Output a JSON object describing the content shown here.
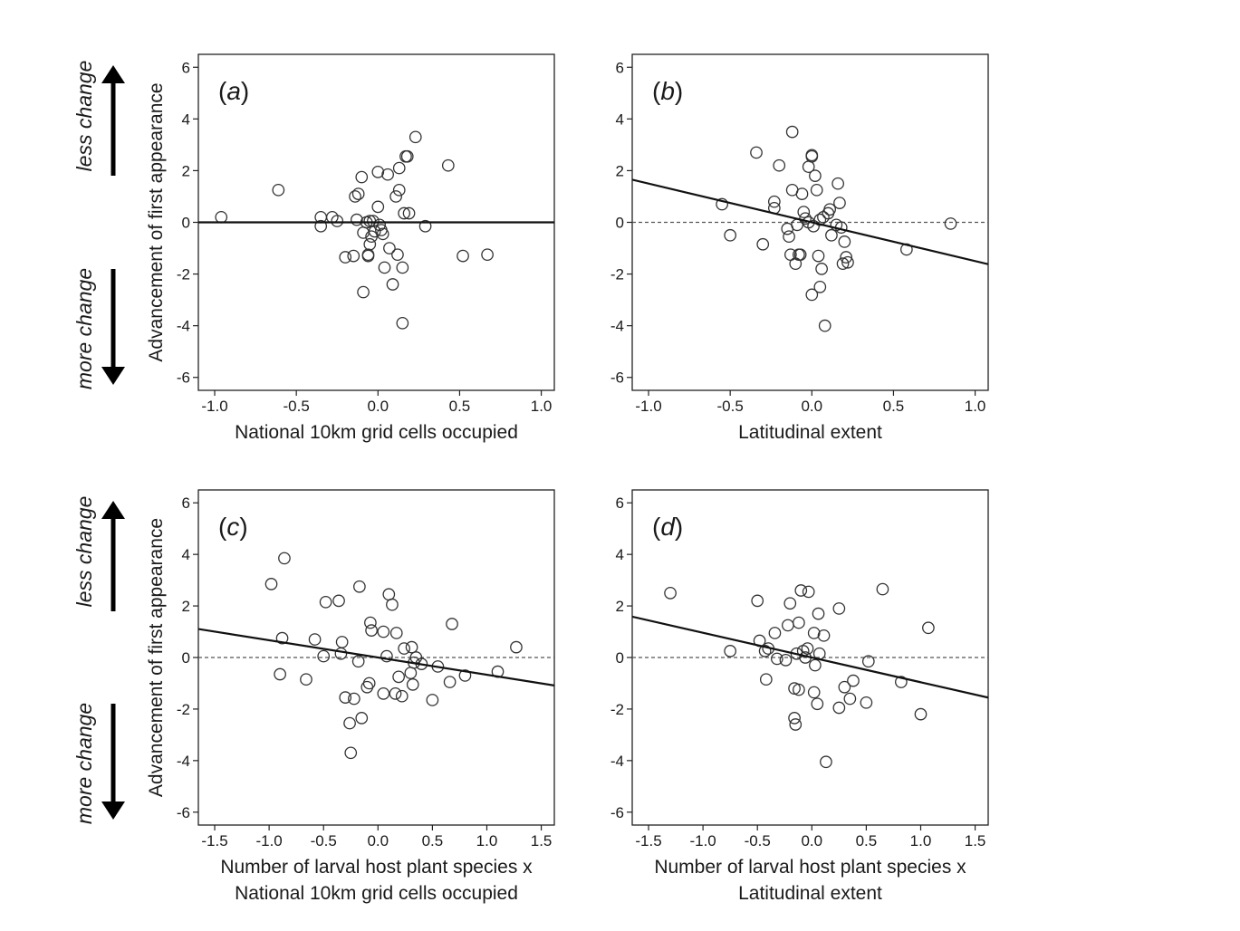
{
  "side_labels": {
    "top": "less change",
    "bottom": "more change"
  },
  "chart_data": [
    {
      "type": "scatter",
      "tag_open": "(",
      "tag_letter": "a",
      "tag_close": ")",
      "xlabel": [
        "National 10km grid cells occupied"
      ],
      "ylabel": "Advancement of first appearance",
      "xlim": [
        -1.1,
        1.08
      ],
      "ylim": [
        -6.5,
        6.5
      ],
      "xticks": [
        "-1.0",
        "-0.5",
        "0.0",
        "0.5",
        "1.0"
      ],
      "yticks": [
        "6",
        "4",
        "2",
        "0",
        "-2",
        "-4",
        "-6"
      ],
      "fit_line": {
        "slope": 0.0,
        "intercept": 0.0,
        "style": "solid"
      },
      "reference_line": null,
      "points": [
        [
          -0.96,
          0.2
        ],
        [
          -0.61,
          1.25
        ],
        [
          -0.35,
          0.2
        ],
        [
          -0.35,
          -0.15
        ],
        [
          -0.28,
          0.2
        ],
        [
          -0.25,
          0.05
        ],
        [
          -0.2,
          -1.35
        ],
        [
          -0.15,
          -1.3
        ],
        [
          -0.14,
          1.0
        ],
        [
          -0.13,
          0.1
        ],
        [
          -0.12,
          1.1
        ],
        [
          -0.1,
          1.75
        ],
        [
          -0.09,
          -0.4
        ],
        [
          -0.09,
          -2.7
        ],
        [
          -0.07,
          0.0
        ],
        [
          -0.06,
          -1.25
        ],
        [
          -0.06,
          -1.3
        ],
        [
          -0.05,
          0.05
        ],
        [
          -0.05,
          -0.85
        ],
        [
          -0.04,
          -0.55
        ],
        [
          -0.03,
          0.05
        ],
        [
          -0.02,
          -0.35
        ],
        [
          0.0,
          0.6
        ],
        [
          0.0,
          1.95
        ],
        [
          0.01,
          -0.1
        ],
        [
          0.02,
          -0.3
        ],
        [
          0.03,
          -0.45
        ],
        [
          0.04,
          -1.75
        ],
        [
          0.06,
          1.85
        ],
        [
          0.07,
          -1.0
        ],
        [
          0.09,
          -2.4
        ],
        [
          0.11,
          1.0
        ],
        [
          0.12,
          -1.25
        ],
        [
          0.13,
          2.1
        ],
        [
          0.13,
          1.25
        ],
        [
          0.15,
          -1.75
        ],
        [
          0.15,
          -3.9
        ],
        [
          0.16,
          0.35
        ],
        [
          0.17,
          2.55
        ],
        [
          0.18,
          2.55
        ],
        [
          0.19,
          0.35
        ],
        [
          0.23,
          3.3
        ],
        [
          0.29,
          -0.15
        ],
        [
          0.43,
          2.2
        ],
        [
          0.52,
          -1.3
        ],
        [
          0.67,
          -1.25
        ]
      ]
    },
    {
      "type": "scatter",
      "tag_open": "(",
      "tag_letter": "b",
      "tag_close": ")",
      "xlabel": [
        "Latitudinal extent"
      ],
      "ylabel": "",
      "xlim": [
        -1.1,
        1.08
      ],
      "ylim": [
        -6.5,
        6.5
      ],
      "xticks": [
        "-1.0",
        "-0.5",
        "0.0",
        "0.5",
        "1.0"
      ],
      "yticks": [
        "6",
        "4",
        "2",
        "0",
        "-2",
        "-4",
        "-6"
      ],
      "fit_line": {
        "slope": -1.5,
        "intercept": 0.0,
        "style": "solid"
      },
      "reference_line": {
        "y": 0,
        "style": "dashed"
      },
      "points": [
        [
          -0.55,
          0.7
        ],
        [
          -0.5,
          -0.5
        ],
        [
          -0.34,
          2.7
        ],
        [
          -0.3,
          -0.85
        ],
        [
          -0.23,
          0.8
        ],
        [
          -0.23,
          0.55
        ],
        [
          -0.2,
          2.2
        ],
        [
          -0.15,
          -0.25
        ],
        [
          -0.14,
          -0.55
        ],
        [
          -0.13,
          -1.25
        ],
        [
          -0.12,
          3.5
        ],
        [
          -0.12,
          1.25
        ],
        [
          -0.1,
          -1.6
        ],
        [
          -0.09,
          -0.1
        ],
        [
          -0.08,
          -1.25
        ],
        [
          -0.07,
          -1.25
        ],
        [
          -0.06,
          1.1
        ],
        [
          -0.05,
          0.4
        ],
        [
          -0.04,
          0.15
        ],
        [
          -0.02,
          0.0
        ],
        [
          -0.02,
          2.15
        ],
        [
          0.0,
          2.55
        ],
        [
          0.0,
          2.6
        ],
        [
          0.0,
          -2.8
        ],
        [
          0.01,
          -0.15
        ],
        [
          0.02,
          1.8
        ],
        [
          0.03,
          1.25
        ],
        [
          0.04,
          -1.3
        ],
        [
          0.05,
          -2.5
        ],
        [
          0.05,
          0.1
        ],
        [
          0.06,
          -1.8
        ],
        [
          0.07,
          0.2
        ],
        [
          0.08,
          -4.0
        ],
        [
          0.1,
          0.35
        ],
        [
          0.11,
          0.5
        ],
        [
          0.12,
          -0.5
        ],
        [
          0.15,
          -0.1
        ],
        [
          0.16,
          1.5
        ],
        [
          0.17,
          0.75
        ],
        [
          0.18,
          -0.2
        ],
        [
          0.19,
          -1.6
        ],
        [
          0.2,
          -0.75
        ],
        [
          0.21,
          -1.35
        ],
        [
          0.22,
          -1.55
        ],
        [
          0.58,
          -1.05
        ],
        [
          0.85,
          -0.05
        ]
      ]
    },
    {
      "type": "scatter",
      "tag_open": "(",
      "tag_letter": "c",
      "tag_close": ")",
      "xlabel": [
        "Number of larval host plant species x",
        "National 10km grid cells occupied"
      ],
      "ylabel": "Advancement of first appearance",
      "xlim": [
        -1.65,
        1.62
      ],
      "ylim": [
        -6.5,
        6.5
      ],
      "xticks": [
        "-1.5",
        "-1.0",
        "-0.5",
        "0.0",
        "0.5",
        "1.0",
        "1.5"
      ],
      "yticks": [
        "6",
        "4",
        "2",
        "0",
        "-2",
        "-4",
        "-6"
      ],
      "fit_line": {
        "slope": -0.67,
        "intercept": 0.0,
        "style": "solid"
      },
      "reference_line": {
        "y": 0,
        "style": "dashed"
      },
      "points": [
        [
          -0.98,
          2.85
        ],
        [
          -0.86,
          3.85
        ],
        [
          -0.9,
          -0.65
        ],
        [
          -0.88,
          0.75
        ],
        [
          -0.66,
          -0.85
        ],
        [
          -0.58,
          0.7
        ],
        [
          -0.5,
          0.05
        ],
        [
          -0.48,
          2.15
        ],
        [
          -0.36,
          2.2
        ],
        [
          -0.34,
          0.15
        ],
        [
          -0.33,
          0.6
        ],
        [
          -0.3,
          -1.55
        ],
        [
          -0.26,
          -2.55
        ],
        [
          -0.25,
          -3.7
        ],
        [
          -0.22,
          -1.6
        ],
        [
          -0.18,
          -0.15
        ],
        [
          -0.17,
          2.75
        ],
        [
          -0.15,
          -2.35
        ],
        [
          -0.1,
          -1.15
        ],
        [
          -0.08,
          -1.0
        ],
        [
          -0.07,
          1.35
        ],
        [
          -0.06,
          1.05
        ],
        [
          0.05,
          1.0
        ],
        [
          0.05,
          -1.4
        ],
        [
          0.08,
          0.05
        ],
        [
          0.1,
          2.45
        ],
        [
          0.13,
          2.05
        ],
        [
          0.16,
          -1.4
        ],
        [
          0.17,
          0.95
        ],
        [
          0.19,
          -0.75
        ],
        [
          0.22,
          -1.5
        ],
        [
          0.24,
          0.35
        ],
        [
          0.3,
          -0.6
        ],
        [
          0.31,
          0.4
        ],
        [
          0.32,
          -1.05
        ],
        [
          0.33,
          -0.2
        ],
        [
          0.35,
          0.0
        ],
        [
          0.4,
          -0.25
        ],
        [
          0.5,
          -1.65
        ],
        [
          0.55,
          -0.35
        ],
        [
          0.66,
          -0.95
        ],
        [
          0.68,
          1.3
        ],
        [
          0.8,
          -0.7
        ],
        [
          1.1,
          -0.55
        ],
        [
          1.27,
          0.4
        ]
      ]
    },
    {
      "type": "scatter",
      "tag_open": "(",
      "tag_letter": "d",
      "tag_close": ")",
      "xlabel": [
        "Number of larval host plant species x",
        "Latitudinal extent"
      ],
      "ylabel": "",
      "xlim": [
        -1.65,
        1.62
      ],
      "ylim": [
        -6.5,
        6.5
      ],
      "xticks": [
        "-1.5",
        "-1.0",
        "-0.5",
        "0.0",
        "0.5",
        "1.0",
        "1.5"
      ],
      "yticks": [
        "6",
        "4",
        "2",
        "0",
        "-2",
        "-4",
        "-6"
      ],
      "fit_line": {
        "slope": -0.96,
        "intercept": 0.0,
        "style": "solid"
      },
      "reference_line": {
        "y": 0,
        "style": "dashed"
      },
      "points": [
        [
          -1.3,
          2.5
        ],
        [
          -0.75,
          0.25
        ],
        [
          -0.5,
          2.2
        ],
        [
          -0.48,
          0.65
        ],
        [
          -0.43,
          0.25
        ],
        [
          -0.4,
          0.35
        ],
        [
          -0.42,
          -0.85
        ],
        [
          -0.34,
          0.95
        ],
        [
          -0.32,
          -0.05
        ],
        [
          -0.24,
          -0.1
        ],
        [
          -0.22,
          1.25
        ],
        [
          -0.2,
          2.1
        ],
        [
          -0.16,
          -1.2
        ],
        [
          -0.16,
          -2.35
        ],
        [
          -0.15,
          -2.6
        ],
        [
          -0.14,
          0.15
        ],
        [
          -0.12,
          1.35
        ],
        [
          -0.12,
          -1.25
        ],
        [
          -0.1,
          2.6
        ],
        [
          -0.08,
          0.25
        ],
        [
          -0.06,
          0.0
        ],
        [
          -0.04,
          0.35
        ],
        [
          -0.03,
          2.55
        ],
        [
          0.02,
          -1.35
        ],
        [
          0.02,
          0.95
        ],
        [
          0.03,
          -0.3
        ],
        [
          0.05,
          -1.8
        ],
        [
          0.06,
          1.7
        ],
        [
          0.07,
          0.15
        ],
        [
          0.11,
          0.85
        ],
        [
          0.13,
          -4.05
        ],
        [
          0.25,
          1.9
        ],
        [
          0.25,
          -1.95
        ],
        [
          0.3,
          -1.15
        ],
        [
          0.35,
          -1.6
        ],
        [
          0.38,
          -0.9
        ],
        [
          0.5,
          -1.75
        ],
        [
          0.52,
          -0.15
        ],
        [
          0.65,
          2.65
        ],
        [
          0.82,
          -0.95
        ],
        [
          1.0,
          -2.2
        ],
        [
          1.07,
          1.15
        ]
      ]
    }
  ]
}
